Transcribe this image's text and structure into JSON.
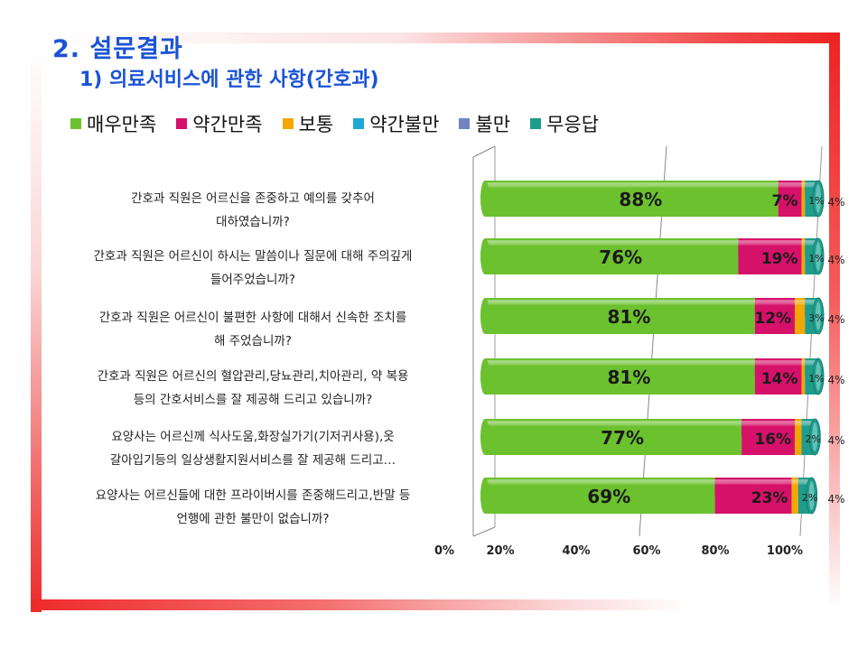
{
  "header": {
    "title": "2. 설문결과",
    "subtitle": "1) 의료서비스에 관한 사항(간호과)"
  },
  "colors": {
    "very_satisfied": "#6cc12f",
    "somewhat_satisfied": "#d6116a",
    "neutral": "#f2a800",
    "somewhat_dissatisfied": "#1aa9d2",
    "dissatisfied": "#7183c4",
    "no_answer": "#1f9c8c"
  },
  "chart_data": {
    "type": "bar",
    "orientation": "horizontal-stacked-100",
    "categories": [
      [
        "간호과 직원은 어르신을 존중하고 예의를 갖추어",
        "대하였습니까?"
      ],
      [
        "간호과 직원은 어르신이 하시는 말씀이나 질문에 대해 주의깊게",
        "들어주었습니까?"
      ],
      [
        "간호과 직원은 어르신이 불편한 사항에 대해서 신속한 조치를",
        "해 주었습니까?"
      ],
      [
        "간호과 직원은 어르신의 혈압관리,당뇨관리,치아관리, 약 복용",
        "등의 간호서비스를 잘 제공해 드리고 있습니까?"
      ],
      [
        "요양사는 어르신께 식사도움,화장실가기(기저귀사용),옷",
        "갈아입기등의 일상생활지원서비스를 잘 제공해 드리고…"
      ],
      [
        "요양사는 어르신들에 대한 프라이버시를 존중해드리고,반말 등",
        "언행에 관한 불만이 없습니까?"
      ]
    ],
    "series": [
      {
        "name": "매우만족",
        "values": [
          88,
          76,
          81,
          81,
          77,
          69
        ]
      },
      {
        "name": "약간만족",
        "values": [
          7,
          19,
          12,
          14,
          16,
          23
        ]
      },
      {
        "name": "보통",
        "values": [
          1,
          1,
          3,
          1,
          2,
          2
        ]
      },
      {
        "name": "약간불만",
        "values": [
          0,
          0,
          0,
          0,
          0,
          0
        ]
      },
      {
        "name": "불만",
        "values": [
          0,
          0,
          0,
          0,
          0,
          0
        ]
      },
      {
        "name": "무응답",
        "values": [
          4,
          4,
          4,
          4,
          4,
          4
        ]
      }
    ],
    "xticks": [
      "0%",
      "20%",
      "40%",
      "60%",
      "80%",
      "100%"
    ],
    "xlim": [
      0,
      100
    ],
    "legend_position": "top",
    "grid": true
  }
}
